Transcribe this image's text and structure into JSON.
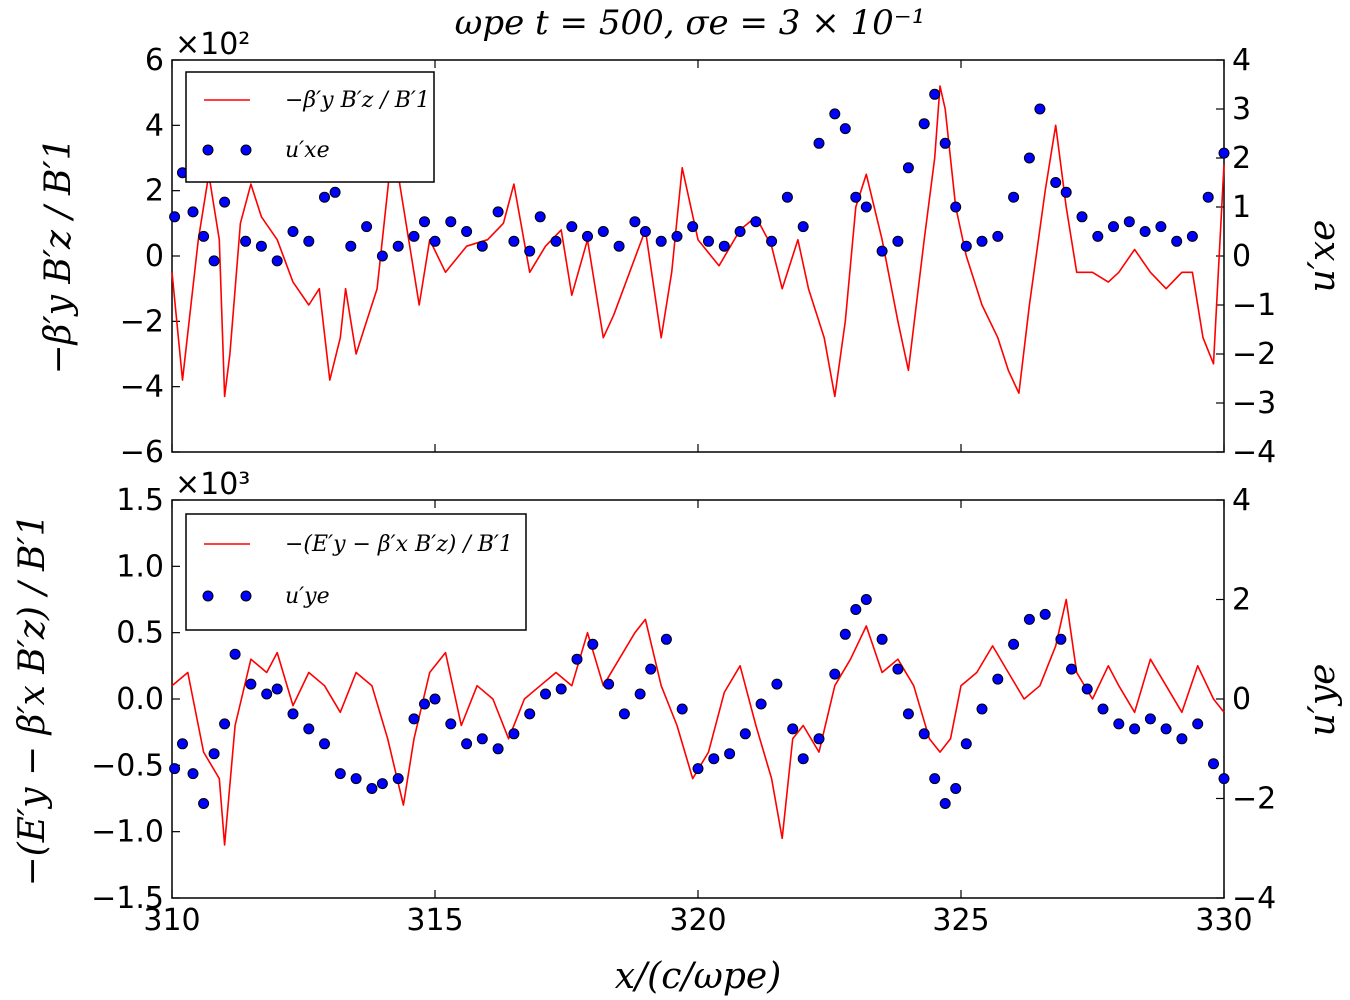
{
  "title": "ωpe t = 500, σe = 3 × 10⁻¹",
  "xlabel": "x/(c/ωpe)",
  "xlim": [
    310,
    330
  ],
  "xticks": [
    "310",
    "315",
    "320",
    "325",
    "330"
  ],
  "colors": {
    "line": "#ff0000",
    "dots": "#0000ff"
  },
  "chart_data": [
    {
      "type": "line",
      "panel": "top",
      "ylabel_left": "−β′y B′z / B′1",
      "ylabel_right": "u′xe",
      "multiplier": "×10²",
      "ylim_left": [
        -6,
        6
      ],
      "ylim_right": [
        -4,
        4
      ],
      "yticks_left": [
        "−6",
        "−4",
        "−2",
        "0",
        "2",
        "4",
        "6"
      ],
      "yticks_right": [
        "−4",
        "−3",
        "−2",
        "−1",
        "0",
        "1",
        "2",
        "3",
        "4"
      ],
      "legend": [
        "−β′y B′z / B′1",
        "u′xe"
      ],
      "series": [
        {
          "name": "−β′y B′z / B′1",
          "style": "line",
          "axis": "left",
          "x": [
            310,
            310.2,
            310.5,
            310.7,
            310.9,
            311.0,
            311.1,
            311.3,
            311.5,
            311.7,
            312.0,
            312.3,
            312.6,
            312.8,
            313.0,
            313.2,
            313.3,
            313.5,
            313.7,
            313.9,
            314.2,
            314.5,
            314.7,
            314.9,
            315.2,
            315.6,
            316.0,
            316.3,
            316.5,
            316.8,
            317.1,
            317.4,
            317.6,
            317.9,
            318.2,
            318.4,
            318.7,
            319.0,
            319.3,
            319.5,
            319.7,
            320.0,
            320.4,
            320.8,
            321.1,
            321.4,
            321.6,
            321.9,
            322.1,
            322.4,
            322.6,
            322.8,
            323.0,
            323.2,
            323.5,
            323.8,
            324.0,
            324.3,
            324.5,
            324.6,
            324.7,
            324.9,
            325.1,
            325.4,
            325.7,
            325.9,
            326.1,
            326.3,
            326.6,
            326.8,
            327.0,
            327.2,
            327.5,
            327.8,
            328.0,
            328.3,
            328.6,
            328.9,
            329.2,
            329.4,
            329.6,
            329.8,
            330
          ],
          "y": [
            -0.5,
            -3.8,
            0.5,
            2.5,
            0.5,
            -4.3,
            -3.0,
            1.0,
            2.2,
            1.2,
            0.5,
            -0.8,
            -1.5,
            -1.0,
            -3.8,
            -2.5,
            -1.0,
            -3.0,
            -2.0,
            -1.0,
            3.5,
            0.5,
            -1.5,
            0.5,
            -0.5,
            0.3,
            0.5,
            1.0,
            2.2,
            -0.5,
            0.3,
            0.8,
            -1.2,
            0.5,
            -2.5,
            -1.8,
            -0.5,
            0.8,
            -2.5,
            -0.5,
            2.7,
            0.5,
            -0.3,
            0.8,
            1.2,
            0.3,
            -1.0,
            0.5,
            -1.0,
            -2.5,
            -4.3,
            -2.0,
            1.5,
            2.5,
            0.5,
            -2.0,
            -3.5,
            0.5,
            3.0,
            5.2,
            4.5,
            1.5,
            0.0,
            -1.5,
            -2.5,
            -3.5,
            -4.2,
            -1.5,
            2.0,
            4.0,
            1.5,
            -0.5,
            -0.5,
            -0.8,
            -0.5,
            0.2,
            -0.5,
            -1.0,
            -0.5,
            -0.5,
            -2.5,
            -3.3,
            2.8
          ]
        },
        {
          "name": "u′xe",
          "style": "scatter",
          "axis": "right",
          "x": [
            310.05,
            310.2,
            310.4,
            310.6,
            310.8,
            311.0,
            311.15,
            311.4,
            311.7,
            312.0,
            312.3,
            312.6,
            312.9,
            313.1,
            313.4,
            313.7,
            314.0,
            314.3,
            314.6,
            314.8,
            315.0,
            315.3,
            315.6,
            315.9,
            316.2,
            316.5,
            316.8,
            317.0,
            317.3,
            317.6,
            317.9,
            318.2,
            318.5,
            318.8,
            319.0,
            319.3,
            319.6,
            319.9,
            320.2,
            320.5,
            320.8,
            321.1,
            321.4,
            321.7,
            322.0,
            322.3,
            322.6,
            322.8,
            323.0,
            323.2,
            323.5,
            323.8,
            324.0,
            324.3,
            324.5,
            324.7,
            324.9,
            325.1,
            325.4,
            325.7,
            326.0,
            326.3,
            326.5,
            326.8,
            327.0,
            327.3,
            327.6,
            327.9,
            328.2,
            328.5,
            328.8,
            329.1,
            329.4,
            329.7,
            330
          ],
          "y": [
            0.8,
            1.7,
            0.9,
            0.4,
            -0.1,
            1.1,
            1.8,
            0.3,
            0.2,
            -0.1,
            0.5,
            0.3,
            1.2,
            1.3,
            0.2,
            0.6,
            0.0,
            0.2,
            0.4,
            0.7,
            0.3,
            0.7,
            0.5,
            0.2,
            0.9,
            0.3,
            0.1,
            0.8,
            0.3,
            0.6,
            0.4,
            0.5,
            0.2,
            0.7,
            0.5,
            0.3,
            0.4,
            0.6,
            0.3,
            0.2,
            0.5,
            0.7,
            0.3,
            1.2,
            0.6,
            2.3,
            2.9,
            2.6,
            1.2,
            1.0,
            0.1,
            0.3,
            1.8,
            2.7,
            3.3,
            2.3,
            1.0,
            0.2,
            0.3,
            0.4,
            1.2,
            2.0,
            3.0,
            1.5,
            1.3,
            0.8,
            0.4,
            0.6,
            0.7,
            0.5,
            0.6,
            0.3,
            0.4,
            1.2,
            2.1
          ]
        }
      ]
    },
    {
      "type": "line",
      "panel": "bottom",
      "ylabel_left": "−(E′y − β′x B′z) / B′1",
      "ylabel_right": "u′ye",
      "multiplier": "×10³",
      "ylim_left": [
        -1.5,
        1.5
      ],
      "ylim_right": [
        -4,
        4
      ],
      "yticks_left": [
        "−1.5",
        "−1.0",
        "−0.5",
        "0.0",
        "0.5",
        "1.0",
        "1.5"
      ],
      "yticks_right": [
        "−4",
        "−2",
        "0",
        "2",
        "4"
      ],
      "legend": [
        "−(E′y − β′x B′z) / B′1",
        "u′ye"
      ],
      "series": [
        {
          "name": "−(E′y − β′x B′z) / B′1",
          "style": "line",
          "axis": "left",
          "x": [
            310,
            310.3,
            310.6,
            310.9,
            311.0,
            311.2,
            311.5,
            311.8,
            312.0,
            312.3,
            312.6,
            312.9,
            313.2,
            313.5,
            313.8,
            314.1,
            314.4,
            314.6,
            314.9,
            315.2,
            315.5,
            315.8,
            316.1,
            316.4,
            316.7,
            317.0,
            317.3,
            317.6,
            317.9,
            318.2,
            318.5,
            318.8,
            319.0,
            319.3,
            319.6,
            319.9,
            320.2,
            320.5,
            320.8,
            321.1,
            321.4,
            321.6,
            321.8,
            322.0,
            322.3,
            322.6,
            322.9,
            323.2,
            323.5,
            323.8,
            324.1,
            324.4,
            324.6,
            324.8,
            325.0,
            325.3,
            325.6,
            325.9,
            326.2,
            326.5,
            326.8,
            327.0,
            327.2,
            327.5,
            327.8,
            328.0,
            328.3,
            328.6,
            328.9,
            329.2,
            329.5,
            329.8,
            330
          ],
          "y": [
            0.1,
            0.2,
            -0.4,
            -0.6,
            -1.1,
            -0.2,
            0.3,
            0.2,
            0.35,
            -0.05,
            0.2,
            0.1,
            -0.1,
            0.2,
            0.1,
            -0.3,
            -0.8,
            -0.3,
            0.2,
            0.35,
            -0.2,
            0.1,
            0.0,
            -0.3,
            0.0,
            0.1,
            0.2,
            0.1,
            0.5,
            0.1,
            0.3,
            0.5,
            0.6,
            0.1,
            -0.2,
            -0.6,
            -0.4,
            0.05,
            0.25,
            -0.2,
            -0.6,
            -1.05,
            -0.3,
            -0.2,
            -0.4,
            0.1,
            0.3,
            0.55,
            0.2,
            0.3,
            0.1,
            -0.3,
            -0.4,
            -0.3,
            0.1,
            0.2,
            0.4,
            0.2,
            0.0,
            0.1,
            0.4,
            0.75,
            0.2,
            0.0,
            0.25,
            0.1,
            -0.1,
            0.3,
            0.1,
            -0.1,
            0.25,
            0.0,
            -0.1
          ]
        },
        {
          "name": "u′ye",
          "style": "scatter",
          "axis": "right",
          "x": [
            310.05,
            310.2,
            310.4,
            310.6,
            310.8,
            311.0,
            311.2,
            311.5,
            311.8,
            312.0,
            312.3,
            312.6,
            312.9,
            313.2,
            313.5,
            313.8,
            314.0,
            314.3,
            314.6,
            314.8,
            315.0,
            315.3,
            315.6,
            315.9,
            316.2,
            316.5,
            316.8,
            317.1,
            317.4,
            317.7,
            318.0,
            318.3,
            318.6,
            318.9,
            319.1,
            319.4,
            319.7,
            320.0,
            320.3,
            320.6,
            320.9,
            321.2,
            321.5,
            321.8,
            322.0,
            322.3,
            322.6,
            322.8,
            323.0,
            323.2,
            323.5,
            323.8,
            324.0,
            324.3,
            324.5,
            324.7,
            324.9,
            325.1,
            325.4,
            325.7,
            326.0,
            326.3,
            326.6,
            326.9,
            327.1,
            327.4,
            327.7,
            328.0,
            328.3,
            328.6,
            328.9,
            329.2,
            329.5,
            329.8,
            330
          ],
          "y": [
            -1.4,
            -0.9,
            -1.5,
            -2.1,
            -1.1,
            -0.5,
            0.9,
            0.3,
            0.1,
            0.2,
            -0.3,
            -0.6,
            -0.9,
            -1.5,
            -1.6,
            -1.8,
            -1.7,
            -1.6,
            -0.4,
            -0.1,
            0.0,
            -0.5,
            -0.9,
            -0.8,
            -1.0,
            -0.7,
            -0.3,
            0.1,
            0.2,
            0.8,
            1.1,
            0.3,
            -0.3,
            0.1,
            0.6,
            1.2,
            -0.2,
            -1.4,
            -1.2,
            -1.1,
            -0.7,
            -0.1,
            0.3,
            -0.6,
            -1.2,
            -0.8,
            0.5,
            1.3,
            1.8,
            2.0,
            1.2,
            0.6,
            -0.3,
            -0.7,
            -1.6,
            -2.1,
            -1.8,
            -0.9,
            -0.2,
            0.4,
            1.1,
            1.6,
            1.7,
            1.2,
            0.6,
            0.2,
            -0.2,
            -0.5,
            -0.6,
            -0.4,
            -0.6,
            -0.8,
            -0.5,
            -1.3,
            -1.6
          ]
        }
      ]
    }
  ]
}
